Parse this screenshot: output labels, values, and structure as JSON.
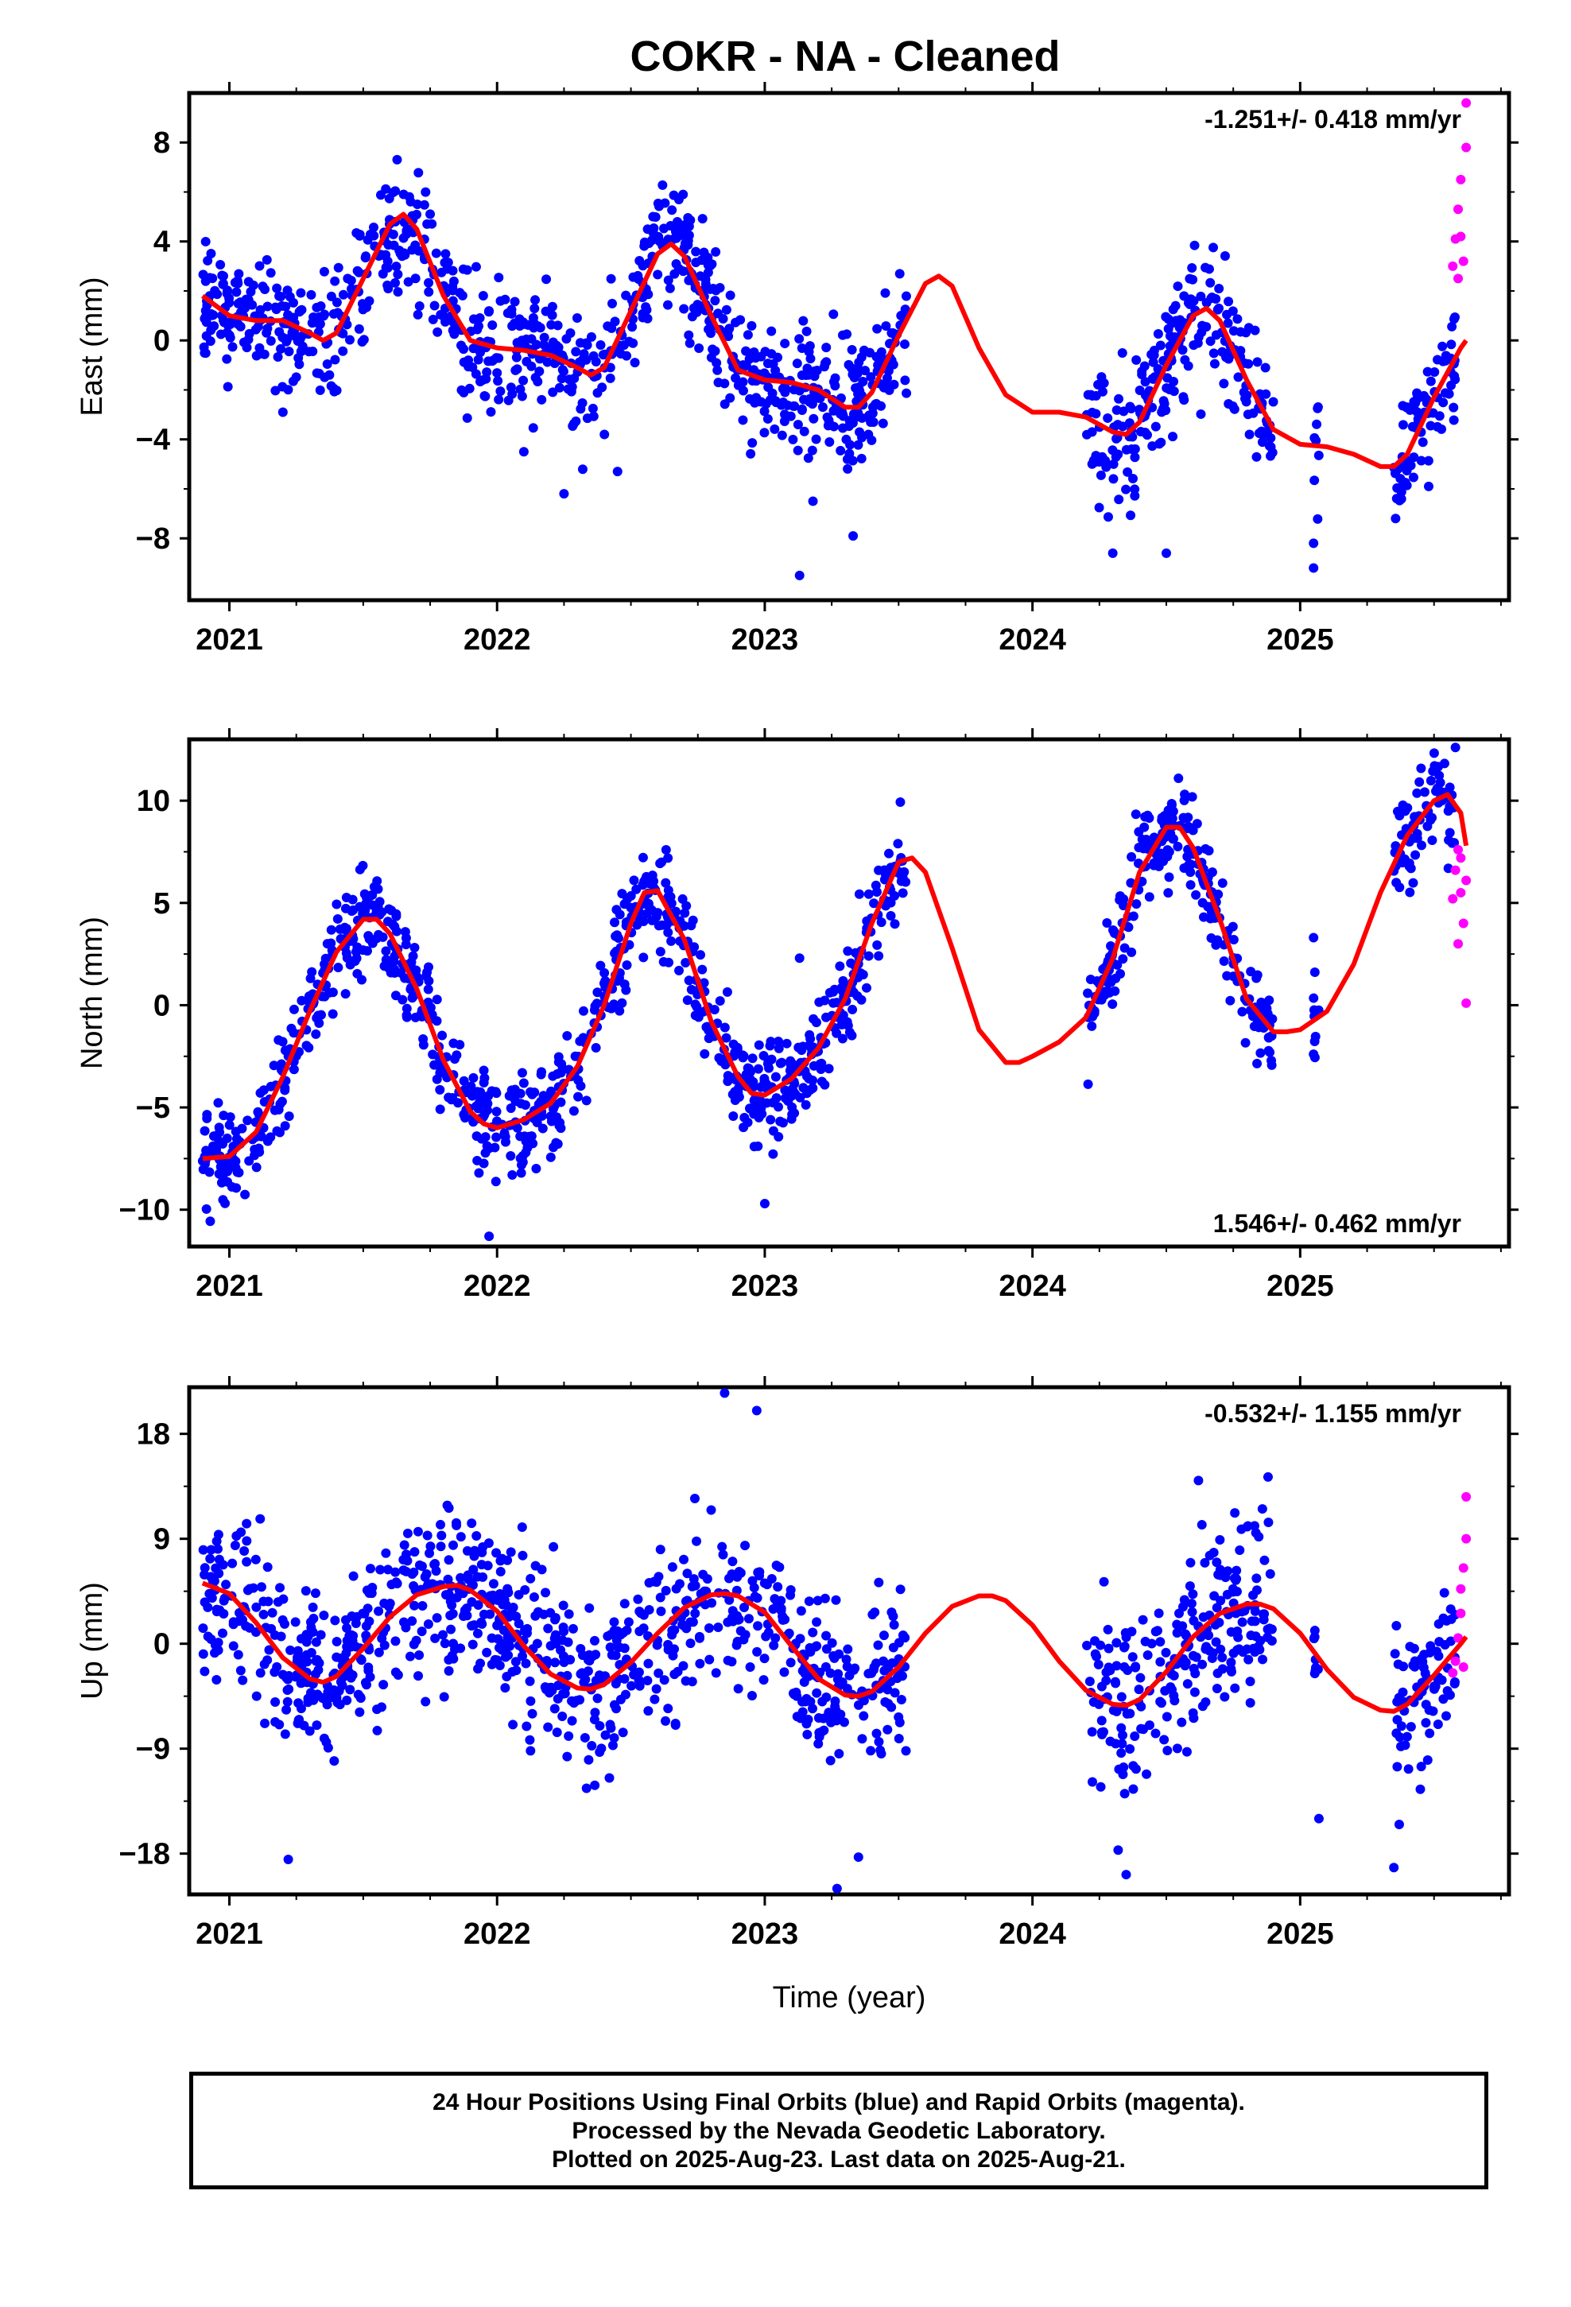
{
  "title": "COKR  - NA - Cleaned",
  "colors": {
    "final": "#0000ff",
    "rapid": "#ff00ff",
    "model": "#ff0000"
  },
  "footer": {
    "line1": "24 Hour Positions Using Final Orbits (blue) and Rapid Orbits (magenta).",
    "line2": "Processed by the Nevada Geodetic Laboratory.",
    "line3": "Plotted on 2025-Aug-23. Last data on 2025-Aug-21."
  },
  "chart_data": [
    {
      "type": "scatter",
      "ylabel": "East (mm)",
      "rate": "-1.251+/- 0.418 mm/yr",
      "rate_position": "top-right",
      "xlim": [
        2020.85,
        2025.78
      ],
      "ylim": [
        -10.5,
        10
      ],
      "yticks": [
        -8,
        -4,
        0,
        4,
        8
      ],
      "xticks": [
        2021,
        2022,
        2023,
        2024,
        2025
      ],
      "model_curve": [
        [
          2020.9,
          1.8
        ],
        [
          2021.0,
          1.0
        ],
        [
          2021.1,
          0.8
        ],
        [
          2021.2,
          0.8
        ],
        [
          2021.3,
          0.3
        ],
        [
          2021.35,
          0.0
        ],
        [
          2021.4,
          0.3
        ],
        [
          2021.5,
          2.5
        ],
        [
          2021.6,
          4.7
        ],
        [
          2021.65,
          5.1
        ],
        [
          2021.7,
          4.5
        ],
        [
          2021.8,
          1.8
        ],
        [
          2021.9,
          0.0
        ],
        [
          2022.0,
          -0.3
        ],
        [
          2022.1,
          -0.4
        ],
        [
          2022.2,
          -0.6
        ],
        [
          2022.3,
          -1.1
        ],
        [
          2022.35,
          -1.4
        ],
        [
          2022.4,
          -1.1
        ],
        [
          2022.5,
          1.2
        ],
        [
          2022.6,
          3.5
        ],
        [
          2022.65,
          3.9
        ],
        [
          2022.7,
          3.4
        ],
        [
          2022.8,
          1.0
        ],
        [
          2022.9,
          -1.2
        ],
        [
          2023.0,
          -1.6
        ],
        [
          2023.1,
          -1.7
        ],
        [
          2023.2,
          -2.0
        ],
        [
          2023.3,
          -2.7
        ],
        [
          2023.35,
          -2.7
        ],
        [
          2023.4,
          -2.1
        ],
        [
          2023.5,
          0.2
        ],
        [
          2023.6,
          2.3
        ],
        [
          2023.65,
          2.6
        ],
        [
          2023.7,
          2.2
        ],
        [
          2023.8,
          -0.3
        ],
        [
          2023.9,
          -2.2
        ],
        [
          2024.0,
          -2.9
        ],
        [
          2024.1,
          -2.9
        ],
        [
          2024.2,
          -3.1
        ],
        [
          2024.3,
          -3.7
        ],
        [
          2024.35,
          -3.8
        ],
        [
          2024.4,
          -3.3
        ],
        [
          2024.5,
          -1.0
        ],
        [
          2024.6,
          1.0
        ],
        [
          2024.65,
          1.3
        ],
        [
          2024.7,
          0.8
        ],
        [
          2024.8,
          -1.6
        ],
        [
          2024.9,
          -3.6
        ],
        [
          2025.0,
          -4.2
        ],
        [
          2025.1,
          -4.3
        ],
        [
          2025.2,
          -4.6
        ],
        [
          2025.3,
          -5.1
        ],
        [
          2025.35,
          -5.1
        ],
        [
          2025.4,
          -4.6
        ],
        [
          2025.5,
          -2.3
        ],
        [
          2025.6,
          -0.3
        ],
        [
          2025.62,
          0.0
        ]
      ],
      "final_points_anchor": [
        [
          2020.9,
          1.8
        ],
        [
          2021.0,
          1.2
        ],
        [
          2021.2,
          0.6
        ],
        [
          2021.35,
          0.3
        ],
        [
          2021.55,
          3.5
        ],
        [
          2021.65,
          5.0
        ],
        [
          2021.8,
          1.8
        ],
        [
          2022.0,
          -0.5
        ],
        [
          2022.3,
          -1.5
        ],
        [
          2022.45,
          0.0
        ],
        [
          2022.65,
          3.8
        ],
        [
          2022.8,
          1.0
        ],
        [
          2023.0,
          -1.8
        ],
        [
          2023.15,
          -2.0
        ],
        [
          2023.15,
          -2.2
        ],
        [
          2023.3,
          -2.8
        ],
        [
          2023.5,
          -1.0
        ]
      ],
      "final_points_range": [
        [
          2020.9,
          2023.53
        ],
        [
          2024.2,
          2024.9
        ],
        [
          2025.05,
          2025.07
        ],
        [
          2025.35,
          2025.58
        ]
      ],
      "rapid_points": [
        [
          2025.57,
          3.0
        ],
        [
          2025.58,
          4.1
        ],
        [
          2025.59,
          2.5
        ],
        [
          2025.59,
          5.3
        ],
        [
          2025.6,
          6.5
        ],
        [
          2025.61,
          3.2
        ],
        [
          2025.62,
          7.8
        ],
        [
          2025.62,
          9.6
        ],
        [
          2025.6,
          4.2
        ]
      ],
      "outliers": [
        [
          2021.2,
          -2.9
        ],
        [
          2022.1,
          -4.5
        ],
        [
          2022.25,
          -6.2
        ],
        [
          2022.45,
          -5.3
        ],
        [
          2023.13,
          -9.5
        ],
        [
          2023.18,
          -6.5
        ],
        [
          2023.33,
          -7.9
        ],
        [
          2024.3,
          -8.6
        ],
        [
          2024.5,
          -8.6
        ],
        [
          2025.05,
          -8.2
        ],
        [
          2025.05,
          -9.2
        ],
        [
          2025.48,
          -5.9
        ]
      ]
    },
    {
      "type": "scatter",
      "ylabel": "North (mm)",
      "rate": "1.546+/- 0.462 mm/yr",
      "rate_position": "bottom-right",
      "xlim": [
        2020.85,
        2025.78
      ],
      "ylim": [
        -11.8,
        13
      ],
      "yticks": [
        -10,
        -5,
        0,
        5,
        10
      ],
      "xticks": [
        2021,
        2022,
        2023,
        2024,
        2025
      ],
      "model_curve": [
        [
          2020.9,
          -7.5
        ],
        [
          2021.0,
          -7.4
        ],
        [
          2021.1,
          -6.2
        ],
        [
          2021.2,
          -3.5
        ],
        [
          2021.3,
          -0.3
        ],
        [
          2021.4,
          2.6
        ],
        [
          2021.5,
          4.2
        ],
        [
          2021.55,
          4.2
        ],
        [
          2021.6,
          3.5
        ],
        [
          2021.7,
          0.8
        ],
        [
          2021.8,
          -2.7
        ],
        [
          2021.9,
          -5.2
        ],
        [
          2021.95,
          -5.8
        ],
        [
          2022.0,
          -6.0
        ],
        [
          2022.1,
          -5.6
        ],
        [
          2022.2,
          -4.8
        ],
        [
          2022.3,
          -3.0
        ],
        [
          2022.4,
          0.0
        ],
        [
          2022.5,
          4.0
        ],
        [
          2022.55,
          5.5
        ],
        [
          2022.6,
          5.6
        ],
        [
          2022.7,
          3.2
        ],
        [
          2022.8,
          -0.8
        ],
        [
          2022.9,
          -3.5
        ],
        [
          2022.95,
          -4.3
        ],
        [
          2023.0,
          -4.4
        ],
        [
          2023.1,
          -3.6
        ],
        [
          2023.2,
          -2.1
        ],
        [
          2023.3,
          0.3
        ],
        [
          2023.4,
          4.0
        ],
        [
          2023.5,
          7.0
        ],
        [
          2023.55,
          7.2
        ],
        [
          2023.6,
          6.5
        ],
        [
          2023.7,
          2.8
        ],
        [
          2023.8,
          -1.2
        ],
        [
          2023.9,
          -2.8
        ],
        [
          2023.95,
          -2.8
        ],
        [
          2024.0,
          -2.5
        ],
        [
          2024.1,
          -1.8
        ],
        [
          2024.2,
          -0.6
        ],
        [
          2024.3,
          2.3
        ],
        [
          2024.4,
          6.5
        ],
        [
          2024.5,
          8.7
        ],
        [
          2024.55,
          8.7
        ],
        [
          2024.6,
          7.7
        ],
        [
          2024.7,
          4.2
        ],
        [
          2024.8,
          0.3
        ],
        [
          2024.9,
          -1.3
        ],
        [
          2024.95,
          -1.3
        ],
        [
          2025.0,
          -1.2
        ],
        [
          2025.1,
          -0.3
        ],
        [
          2025.2,
          2.0
        ],
        [
          2025.3,
          5.5
        ],
        [
          2025.4,
          8.3
        ],
        [
          2025.5,
          10.0
        ],
        [
          2025.55,
          10.3
        ],
        [
          2025.6,
          9.4
        ],
        [
          2025.62,
          7.8
        ]
      ],
      "final_points_range": [
        [
          2020.9,
          2023.53
        ],
        [
          2024.2,
          2024.9
        ],
        [
          2025.05,
          2025.07
        ],
        [
          2025.35,
          2025.58
        ]
      ],
      "rapid_points": [
        [
          2025.57,
          5.2
        ],
        [
          2025.58,
          6.6
        ],
        [
          2025.59,
          3.0
        ],
        [
          2025.6,
          7.2
        ],
        [
          2025.6,
          5.5
        ],
        [
          2025.61,
          4.0
        ],
        [
          2025.62,
          0.1
        ],
        [
          2025.62,
          6.1
        ],
        [
          2025.59,
          7.6
        ]
      ],
      "outliers": [
        [
          2021.97,
          -11.3
        ],
        [
          2023.0,
          -9.7
        ],
        [
          2023.13,
          2.3
        ],
        [
          2025.05,
          -2.4
        ],
        [
          2025.05,
          3.3
        ],
        [
          2025.58,
          12.6
        ]
      ]
    },
    {
      "type": "scatter",
      "ylabel": "Up (mm)",
      "xlabel": "Time (year)",
      "rate": "-0.532+/- 1.155 mm/yr",
      "rate_position": "top-right",
      "xlim": [
        2020.85,
        2025.78
      ],
      "ylim": [
        -21.5,
        22
      ],
      "yticks": [
        -18,
        -9,
        0,
        9,
        18
      ],
      "xticks": [
        2021,
        2022,
        2023,
        2024,
        2025
      ],
      "model_curve": [
        [
          2020.9,
          5.2
        ],
        [
          2021.0,
          4.3
        ],
        [
          2021.1,
          1.8
        ],
        [
          2021.2,
          -1.2
        ],
        [
          2021.3,
          -3.0
        ],
        [
          2021.35,
          -3.3
        ],
        [
          2021.4,
          -2.8
        ],
        [
          2021.5,
          -0.4
        ],
        [
          2021.6,
          2.3
        ],
        [
          2021.7,
          4.2
        ],
        [
          2021.8,
          4.9
        ],
        [
          2021.85,
          5.0
        ],
        [
          2021.9,
          4.6
        ],
        [
          2022.0,
          2.8
        ],
        [
          2022.1,
          -0.2
        ],
        [
          2022.2,
          -2.6
        ],
        [
          2022.3,
          -3.8
        ],
        [
          2022.35,
          -3.9
        ],
        [
          2022.4,
          -3.5
        ],
        [
          2022.5,
          -1.6
        ],
        [
          2022.6,
          0.9
        ],
        [
          2022.7,
          3.1
        ],
        [
          2022.8,
          4.2
        ],
        [
          2022.85,
          4.3
        ],
        [
          2022.9,
          4.1
        ],
        [
          2023.0,
          2.7
        ],
        [
          2023.1,
          -0.2
        ],
        [
          2023.2,
          -3.0
        ],
        [
          2023.3,
          -4.4
        ],
        [
          2023.35,
          -4.5
        ],
        [
          2023.4,
          -4.1
        ],
        [
          2023.5,
          -2.0
        ],
        [
          2023.6,
          0.9
        ],
        [
          2023.7,
          3.2
        ],
        [
          2023.8,
          4.1
        ],
        [
          2023.85,
          4.1
        ],
        [
          2023.9,
          3.7
        ],
        [
          2024.0,
          1.6
        ],
        [
          2024.1,
          -1.5
        ],
        [
          2024.2,
          -4.0
        ],
        [
          2024.3,
          -5.2
        ],
        [
          2024.35,
          -5.3
        ],
        [
          2024.4,
          -4.8
        ],
        [
          2024.5,
          -2.4
        ],
        [
          2024.6,
          0.6
        ],
        [
          2024.7,
          2.6
        ],
        [
          2024.8,
          3.4
        ],
        [
          2024.85,
          3.4
        ],
        [
          2024.9,
          3.0
        ],
        [
          2025.0,
          0.9
        ],
        [
          2025.1,
          -2.2
        ],
        [
          2025.2,
          -4.6
        ],
        [
          2025.3,
          -5.7
        ],
        [
          2025.35,
          -5.8
        ],
        [
          2025.4,
          -5.2
        ],
        [
          2025.5,
          -2.7
        ],
        [
          2025.6,
          0.0
        ],
        [
          2025.62,
          0.6
        ]
      ],
      "final_points_range": [
        [
          2020.9,
          2023.53
        ],
        [
          2024.2,
          2024.9
        ],
        [
          2025.05,
          2025.07
        ],
        [
          2025.35,
          2025.58
        ]
      ],
      "rapid_points": [
        [
          2025.57,
          -2.5
        ],
        [
          2025.58,
          -1.5
        ],
        [
          2025.59,
          0.5
        ],
        [
          2025.6,
          2.6
        ],
        [
          2025.6,
          4.7
        ],
        [
          2025.61,
          6.5
        ],
        [
          2025.62,
          9.0
        ],
        [
          2025.62,
          12.6
        ],
        [
          2025.61,
          -2.0
        ]
      ],
      "outliers": [
        [
          2021.22,
          -18.5
        ],
        [
          2022.85,
          21.5
        ],
        [
          2023.27,
          -21.0
        ],
        [
          2023.35,
          -18.3
        ],
        [
          2024.35,
          -19.8
        ],
        [
          2024.32,
          -17.7
        ],
        [
          2025.07,
          -15.0
        ],
        [
          2025.35,
          -19.2
        ],
        [
          2025.37,
          -15.5
        ],
        [
          2024.88,
          14.3
        ],
        [
          2024.62,
          14.0
        ],
        [
          2022.97,
          20.0
        ]
      ]
    }
  ]
}
